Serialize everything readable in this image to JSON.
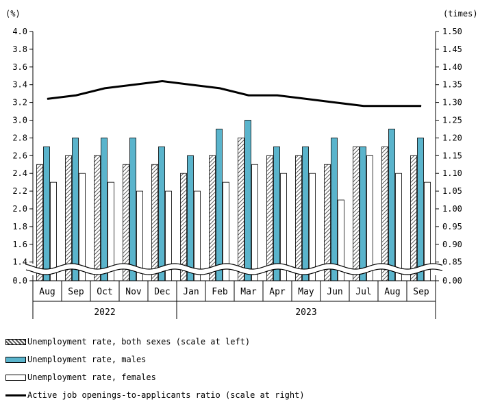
{
  "chart_data": {
    "type": "bar",
    "left_axis_unit": "(%)",
    "right_axis_unit": "(times)",
    "categories": [
      "Aug",
      "Sep",
      "Oct",
      "Nov",
      "Dec",
      "Jan",
      "Feb",
      "Mar",
      "Apr",
      "May",
      "Jun",
      "Jul",
      "Aug",
      "Sep"
    ],
    "years": [
      {
        "label": "2022",
        "start": 0,
        "end": 4
      },
      {
        "label": "2023",
        "start": 5,
        "end": 13
      }
    ],
    "left_ticks": [
      "0.0",
      "1.4",
      "1.6",
      "1.8",
      "2.0",
      "2.2",
      "2.4",
      "2.6",
      "2.8",
      "3.0",
      "3.2",
      "3.4",
      "3.6",
      "3.8",
      "4.0"
    ],
    "right_ticks": [
      "0.00",
      "0.85",
      "0.90",
      "0.95",
      "1.00",
      "1.05",
      "1.10",
      "1.15",
      "1.20",
      "1.25",
      "1.30",
      "1.35",
      "1.40",
      "1.45",
      "1.50"
    ],
    "left_ylim": [
      1.3,
      4.0
    ],
    "right_ylim": [
      0.825,
      1.5
    ],
    "axis_break": true,
    "series": [
      {
        "name": "Unemployment rate, both sexes (scale at left)",
        "axis": "left",
        "style": "hatched",
        "color": "#555555",
        "values": [
          2.5,
          2.6,
          2.6,
          2.5,
          2.5,
          2.4,
          2.6,
          2.8,
          2.6,
          2.6,
          2.5,
          2.7,
          2.7,
          2.6
        ]
      },
      {
        "name": "Unemployment rate, males",
        "axis": "left",
        "style": "solid",
        "color": "#5ab4cc",
        "values": [
          2.7,
          2.8,
          2.8,
          2.8,
          2.7,
          2.6,
          2.9,
          3.0,
          2.7,
          2.7,
          2.8,
          2.7,
          2.9,
          2.8
        ]
      },
      {
        "name": "Unemployment rate, females",
        "axis": "left",
        "style": "outline",
        "color": "#ffffff",
        "values": [
          2.3,
          2.4,
          2.3,
          2.2,
          2.2,
          2.2,
          2.3,
          2.5,
          2.4,
          2.4,
          2.1,
          2.6,
          2.4,
          2.3
        ]
      },
      {
        "name": "Active job openings-to-applicants ratio (scale at right)",
        "axis": "right",
        "style": "line",
        "color": "#000000",
        "values": [
          1.31,
          1.32,
          1.34,
          1.35,
          1.36,
          1.35,
          1.34,
          1.32,
          1.32,
          1.31,
          1.3,
          1.29,
          1.29,
          1.29
        ]
      }
    ]
  }
}
